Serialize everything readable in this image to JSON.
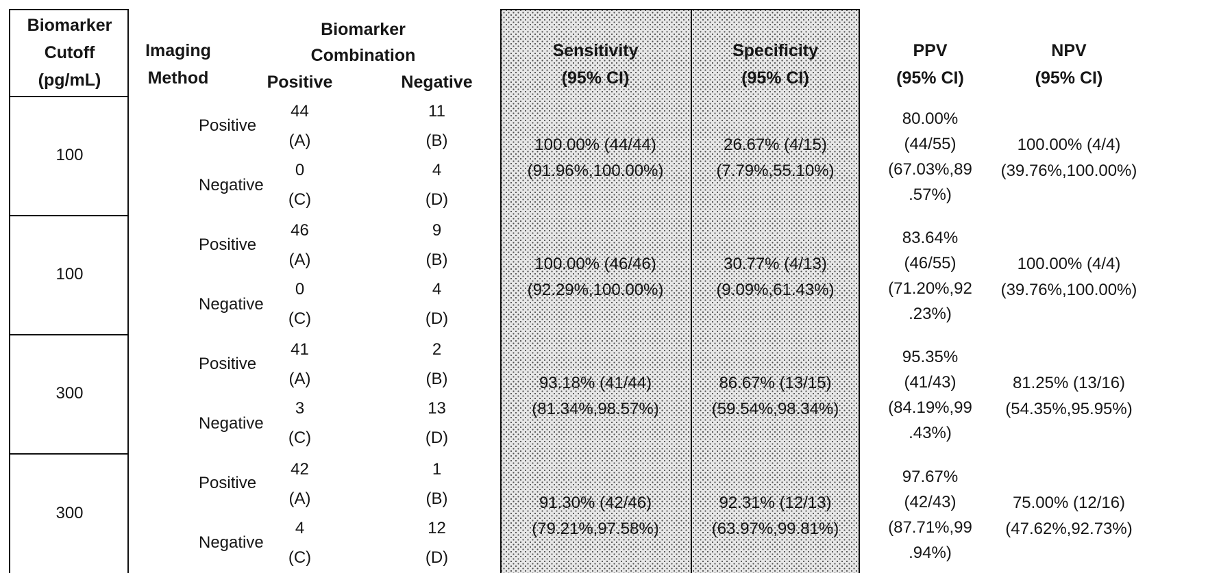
{
  "style": {
    "shaded_block_bg": "#e7e7e7",
    "halftone_dot_color": "#4c4c4c",
    "border_color": "#101010",
    "text_color": "#161616",
    "page_bg": "#ffffff"
  },
  "header": {
    "cutoff": [
      "Biomarker",
      "Cutoff",
      "(pg/mL)"
    ],
    "imaging": [
      "Imaging",
      "Method"
    ],
    "combination": [
      "Biomarker",
      "Combination"
    ],
    "combination_positive": "Positive",
    "combination_negative": "Negative",
    "sensitivity": [
      "Sensitivity",
      "(95% CI)"
    ],
    "specificity": [
      "Specificity",
      "(95% CI)"
    ],
    "ppv": [
      "PPV",
      "(95% CI)"
    ],
    "npv": [
      "NPV",
      "(95% CI)"
    ]
  },
  "groups": [
    {
      "cutoff": "100",
      "rows": [
        {
          "imaging": "Positive",
          "pos_count": "44",
          "pos_label": "(A)",
          "neg_count": "11",
          "neg_label": "(B)"
        },
        {
          "imaging": "Negative",
          "pos_count": "0",
          "pos_label": "(C)",
          "neg_count": "4",
          "neg_label": "(D)"
        }
      ],
      "sensitivity": [
        "100.00% (44/44)",
        "(91.96%,100.00%)"
      ],
      "specificity": [
        "26.67% (4/15)",
        "(7.79%,55.10%)"
      ],
      "ppv": [
        "80.00%",
        "(44/55)",
        "(67.03%,89",
        ".57%)"
      ],
      "npv": [
        "100.00% (4/4)",
        "(39.76%,100.00%)"
      ]
    },
    {
      "cutoff": "100",
      "rows": [
        {
          "imaging": "Positive",
          "pos_count": "46",
          "pos_label": "(A)",
          "neg_count": "9",
          "neg_label": "(B)"
        },
        {
          "imaging": "Negative",
          "pos_count": "0",
          "pos_label": "(C)",
          "neg_count": "4",
          "neg_label": "(D)"
        }
      ],
      "sensitivity": [
        "100.00% (46/46)",
        "(92.29%,100.00%)"
      ],
      "specificity": [
        "30.77% (4/13)",
        "(9.09%,61.43%)"
      ],
      "ppv": [
        "83.64%",
        "(46/55)",
        "(71.20%,92",
        ".23%)"
      ],
      "npv": [
        "100.00% (4/4)",
        "(39.76%,100.00%)"
      ]
    },
    {
      "cutoff": "300",
      "rows": [
        {
          "imaging": "Positive",
          "pos_count": "41",
          "pos_label": "(A)",
          "neg_count": "2",
          "neg_label": "(B)"
        },
        {
          "imaging": "Negative",
          "pos_count": "3",
          "pos_label": "(C)",
          "neg_count": "13",
          "neg_label": "(D)"
        }
      ],
      "sensitivity": [
        "93.18% (41/44)",
        "(81.34%,98.57%)"
      ],
      "specificity": [
        "86.67% (13/15)",
        "(59.54%,98.34%)"
      ],
      "ppv": [
        "95.35%",
        "(41/43)",
        "(84.19%,99",
        ".43%)"
      ],
      "npv": [
        "81.25% (13/16)",
        "(54.35%,95.95%)"
      ]
    },
    {
      "cutoff": "300",
      "rows": [
        {
          "imaging": "Positive",
          "pos_count": "42",
          "pos_label": "(A)",
          "neg_count": "1",
          "neg_label": "(B)"
        },
        {
          "imaging": "Negative",
          "pos_count": "4",
          "pos_label": "(C)",
          "neg_count": "12",
          "neg_label": "(D)"
        }
      ],
      "sensitivity": [
        "91.30% (42/46)",
        "(79.21%,97.58%)"
      ],
      "specificity": [
        "92.31% (12/13)",
        "(63.97%,99.81%)"
      ],
      "ppv": [
        "97.67%",
        "(42/43)",
        "(87.71%,99",
        ".94%)"
      ],
      "npv": [
        "75.00% (12/16)",
        "(47.62%,92.73%)"
      ]
    }
  ]
}
